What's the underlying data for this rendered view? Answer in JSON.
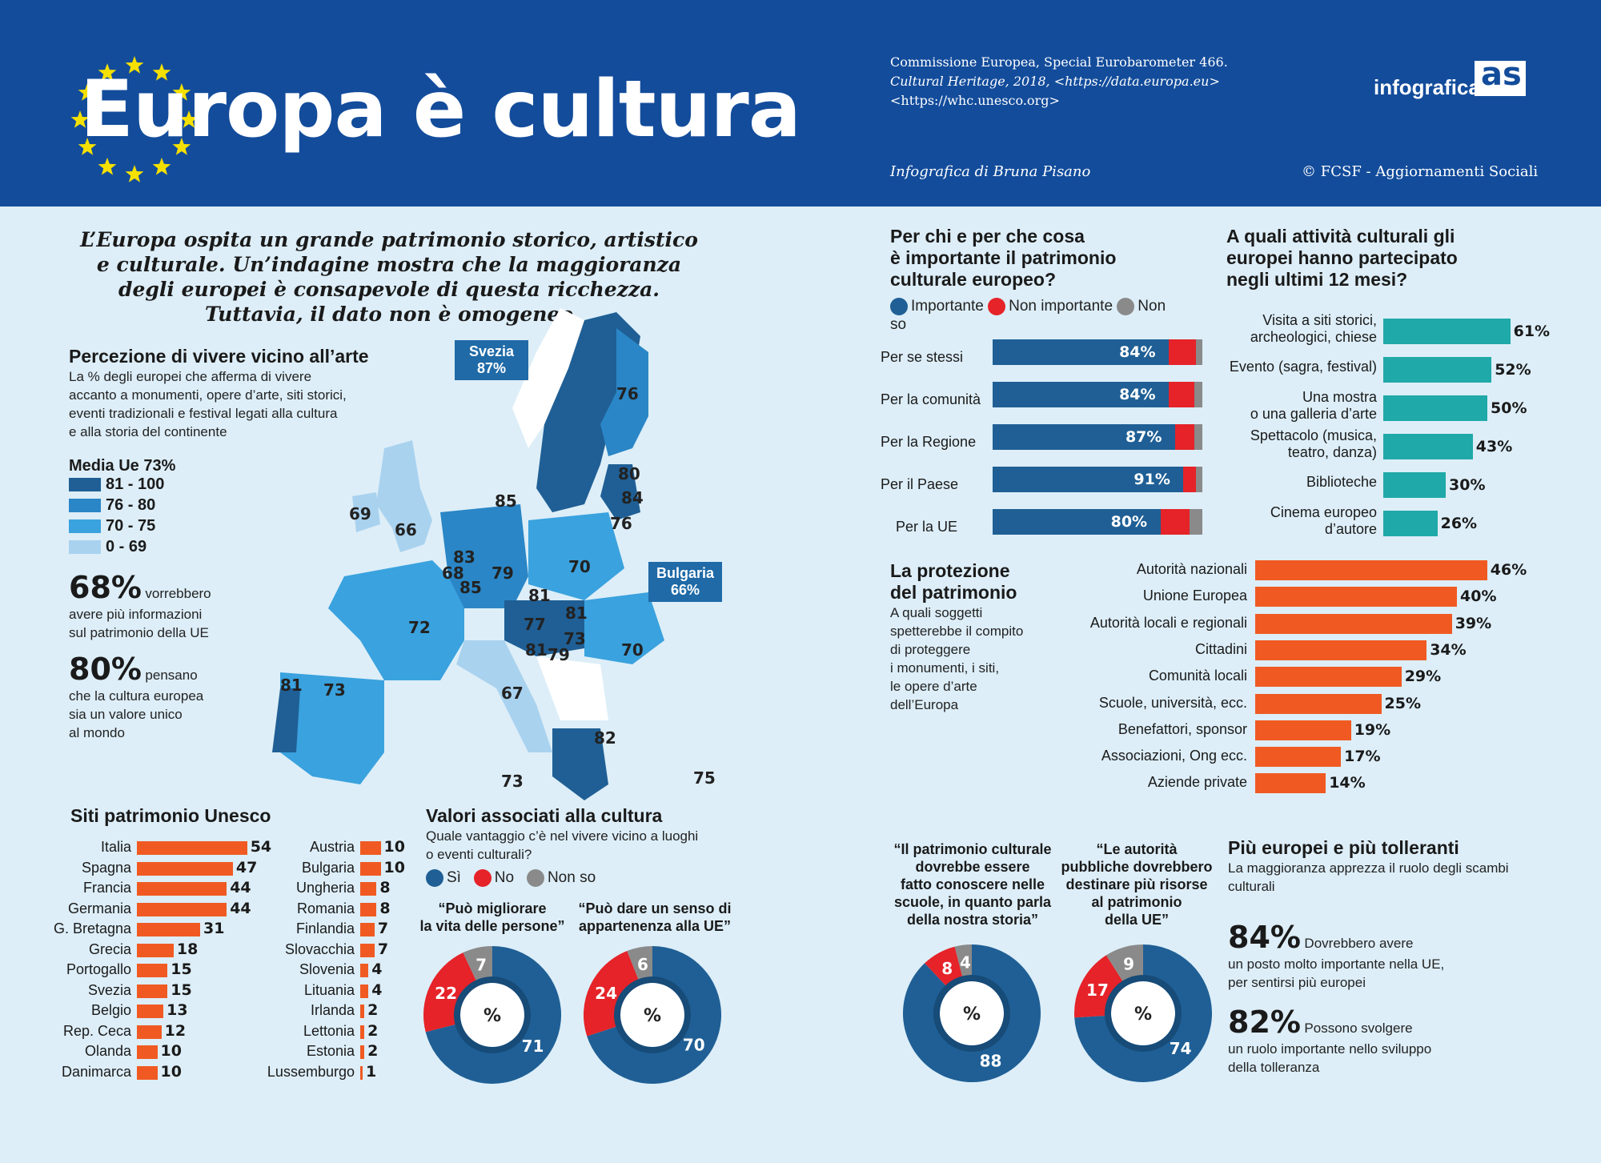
{
  "header": {
    "title": "Europa è cultura",
    "source_1": "Commissione Europea, Special Eurobarometer 466.",
    "source_2": "Cultural Heritage, 2018,  <https://data.europa.eu>",
    "source_3": "<https://whc.unesco.org>",
    "author": "Infografica di Bruna Pisano",
    "copyright": "© FCSF - Aggiornamenti Sociali",
    "logo_text": "infografica",
    "logo_mark": "as"
  },
  "intro": [
    "L’Europa ospita un grande patrimonio storico, artistico",
    "e culturale. Un’indagine mostra che la maggioranza",
    "degli europei è consapevole di questa ricchezza.",
    "Tuttavia, il dato non è omogeneo"
  ],
  "perception": {
    "title": "Percezione di vivere vicino all’arte",
    "desc": [
      "La % degli europei che afferma di vivere",
      "accanto a monumenti, opere d’arte, siti storici,",
      "eventi tradizionali e festival legati alla cultura",
      "e alla storia del continente"
    ],
    "media": "Media Ue 73%",
    "legend": [
      {
        "label": "81 - 100",
        "color": "#1f5f95"
      },
      {
        "label": "76 - 80",
        "color": "#2a86c6"
      },
      {
        "label": "70 - 75",
        "color": "#3aa2de"
      },
      {
        "label": "0 - 69",
        "color": "#a9d2ef"
      }
    ],
    "stat1_value": "68%",
    "stat1_text_a": "vorrebbero",
    "stat1_text_b": "avere più informazioni",
    "stat1_text_c": "sul patrimonio della UE",
    "stat2_value": "80%",
    "stat2_text_a": "pensano",
    "stat2_text_b": "che la cultura europea",
    "stat2_text_c": "sia un valore unico",
    "stat2_text_d": "al mondo"
  },
  "map": {
    "callout_svezia": [
      "Svezia",
      "87%"
    ],
    "callout_bulgaria": [
      "Bulgaria",
      "66%"
    ],
    "labels": [
      "76",
      "80",
      "84",
      "76",
      "85",
      "69",
      "66",
      "83",
      "68",
      "85",
      "79",
      "70",
      "81",
      "81",
      "77",
      "73",
      "81",
      "79",
      "70",
      "72",
      "81",
      "73",
      "67",
      "82",
      "73",
      "75"
    ]
  },
  "unesco": {
    "title": "Siti patrimonio Unesco",
    "left": [
      {
        "country": "Italia",
        "value": 54
      },
      {
        "country": "Spagna",
        "value": 47
      },
      {
        "country": "Francia",
        "value": 44
      },
      {
        "country": "Germania",
        "value": 44
      },
      {
        "country": "G. Bretagna",
        "value": 31
      },
      {
        "country": "Grecia",
        "value": 18
      },
      {
        "country": "Portogallo",
        "value": 15
      },
      {
        "country": "Svezia",
        "value": 15
      },
      {
        "country": "Belgio",
        "value": 13
      },
      {
        "country": "Rep. Ceca",
        "value": 12
      },
      {
        "country": "Olanda",
        "value": 10
      },
      {
        "country": "Danimarca",
        "value": 10
      }
    ],
    "right": [
      {
        "country": "Austria",
        "value": 10
      },
      {
        "country": "Bulgaria",
        "value": 10
      },
      {
        "country": "Ungheria",
        "value": 8
      },
      {
        "country": "Romania",
        "value": 8
      },
      {
        "country": "Finlandia",
        "value": 7
      },
      {
        "country": "Slovacchia",
        "value": 7
      },
      {
        "country": "Slovenia",
        "value": 4
      },
      {
        "country": "Lituania",
        "value": 4
      },
      {
        "country": "Irlanda",
        "value": 2
      },
      {
        "country": "Lettonia",
        "value": 2
      },
      {
        "country": "Estonia",
        "value": 2
      },
      {
        "country": "Lussemburgo",
        "value": 1
      }
    ]
  },
  "valori": {
    "title": "Valori associati alla cultura",
    "subtitle": [
      "Quale vantaggio c’è nel vivere vicino a luoghi",
      "o eventi culturali?"
    ],
    "legend": [
      "Sì",
      "No",
      "Non so"
    ],
    "donuts": [
      {
        "q": [
          "“Può migliorare",
          "la vita delle persone”"
        ],
        "yes": 71,
        "no": 22,
        "ns": 7
      },
      {
        "q": [
          "“Può dare un senso di",
          "appartenenza alla UE”"
        ],
        "yes": 70,
        "no": 24,
        "ns": 6
      }
    ],
    "center": "%"
  },
  "importance": {
    "title": [
      "Per chi e per che cosa",
      "è importante il patrimonio",
      "culturale europeo?"
    ],
    "legend": [
      "Importante",
      "Non importante",
      "Non so"
    ],
    "rows": [
      {
        "label": "Per se stessi",
        "imp": 84,
        "no": 13,
        "ns": 3
      },
      {
        "label": "Per la comunità",
        "imp": 84,
        "no": 12,
        "ns": 4
      },
      {
        "label": "Per la Regione",
        "imp": 87,
        "no": 9,
        "ns": 4
      },
      {
        "label": "Per il Paese",
        "imp": 91,
        "no": 6,
        "ns": 3
      },
      {
        "label": "Per la UE",
        "imp": 80,
        "no": 14,
        "ns": 6
      }
    ]
  },
  "activities": {
    "title": [
      "A quali attività culturali gli",
      "europei hanno partecipato",
      "negli ultimi 12 mesi?"
    ],
    "rows": [
      {
        "label": [
          "Visita a siti storici,",
          "archeologici, chiese"
        ],
        "value": 61
      },
      {
        "label": [
          "Evento (sagra, festival)"
        ],
        "value": 52
      },
      {
        "label": [
          "Una mostra",
          "o una galleria d’arte"
        ],
        "value": 50
      },
      {
        "label": [
          "Spettacolo (musica,",
          "teatro, danza)"
        ],
        "value": 43
      },
      {
        "label": [
          "Biblioteche"
        ],
        "value": 30
      },
      {
        "label": [
          "Cinema europeo",
          "d’autore"
        ],
        "value": 26
      }
    ]
  },
  "protection": {
    "title": [
      "La protezione",
      "del patrimonio"
    ],
    "desc": [
      "A quali soggetti",
      "spetterebbe il compito",
      "di proteggere",
      "i monumenti, i siti,",
      "le opere d’arte",
      "dell’Europa"
    ],
    "rows": [
      {
        "label": "Autorità nazionali",
        "value": 46
      },
      {
        "label": "Unione Europea",
        "value": 40
      },
      {
        "label": "Autorità locali e regionali",
        "value": 39
      },
      {
        "label": "Cittadini",
        "value": 34
      },
      {
        "label": "Comunità locali",
        "value": 29
      },
      {
        "label": "Scuole, università, ecc.",
        "value": 25
      },
      {
        "label": "Benefattori, sponsor",
        "value": 19
      },
      {
        "label": "Associazioni, Ong ecc.",
        "value": 17
      },
      {
        "label": "Aziende private",
        "value": 14
      }
    ]
  },
  "quotes": [
    {
      "text": [
        "“Il patrimonio culturale",
        "dovrebbe essere",
        "fatto conoscere nelle",
        "scuole, in quanto parla",
        "della nostra storia”"
      ],
      "yes": 88,
      "no": 8,
      "ns": 4
    },
    {
      "text": [
        "“Le autorità",
        "pubbliche dovrebbero",
        "destinare più risorse",
        "al patrimonio",
        "della UE”"
      ],
      "yes": 74,
      "no": 17,
      "ns": 9
    }
  ],
  "tolerance": {
    "title": "Più europei e più tolleranti",
    "desc": [
      "La maggioranza apprezza il ruolo degli scambi",
      "culturali"
    ],
    "stat1_value": "84%",
    "stat1_a": "Dovrebbero avere",
    "stat1_b": "un posto molto importante nella UE,",
    "stat1_c": "per sentirsi più europei",
    "stat2_value": "82%",
    "stat2_a": "Possono svolgere",
    "stat2_b": "un ruolo importante nello sviluppo",
    "stat2_c": "della tolleranza"
  },
  "colors": {
    "blue": "#1f5f95",
    "red": "#e52329",
    "gray": "#8a8a8a",
    "orange": "#f05a22",
    "teal": "#1fa9a8",
    "header": "#134c9b"
  }
}
